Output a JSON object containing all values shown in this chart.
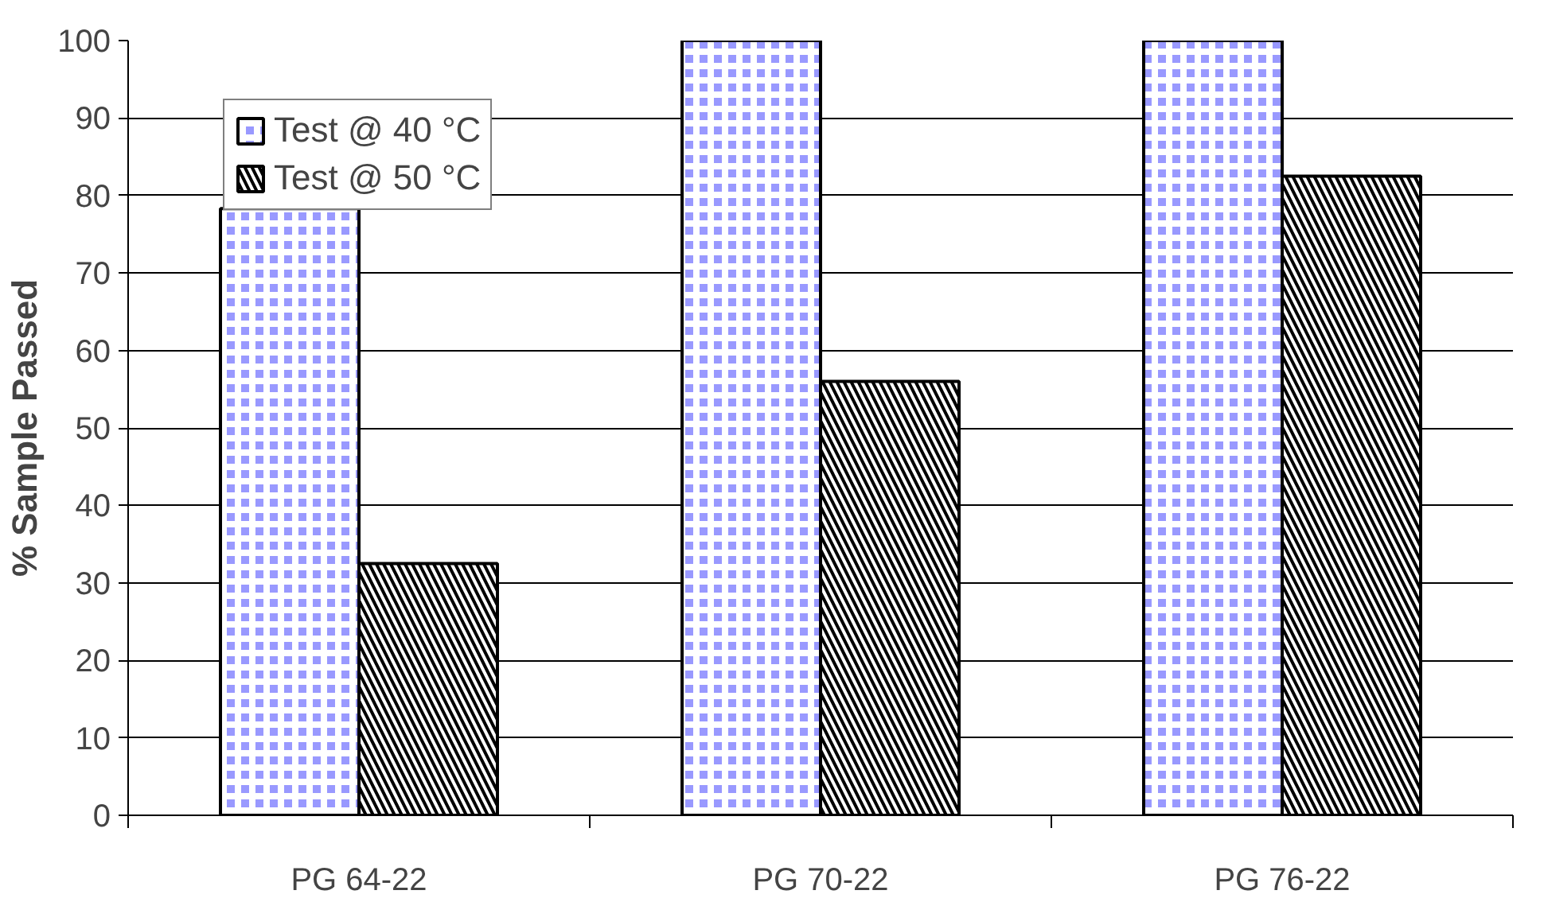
{
  "chart_data": {
    "type": "bar",
    "ylabel": "% Sample Passed",
    "categories": [
      "PG 64-22",
      "PG 70-22",
      "PG 76-22"
    ],
    "series": [
      {
        "name": "Test @ 40 °C",
        "color": "#9999ff",
        "values": [
          78.3,
          100,
          100
        ]
      },
      {
        "name": "Test @ 50 °C",
        "color": "#000000",
        "values": [
          32.5,
          56,
          82.5
        ]
      }
    ],
    "ylim": [
      0,
      100
    ],
    "yticks": [
      0,
      10,
      20,
      30,
      40,
      50,
      60,
      70,
      80,
      90,
      100
    ],
    "grid": "y",
    "legend": "top left"
  }
}
